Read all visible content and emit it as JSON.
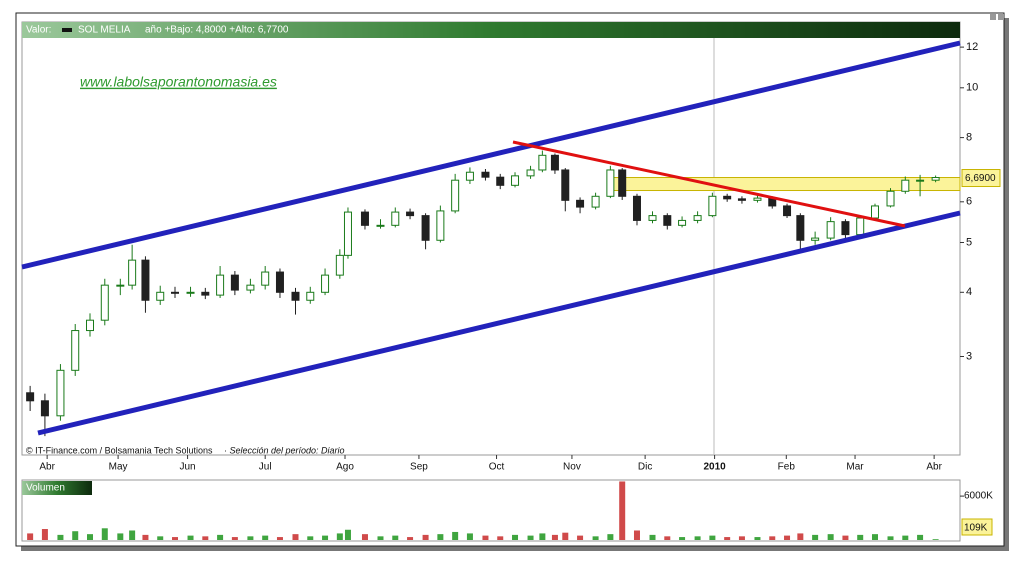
{
  "header": {
    "label": "Valor:",
    "name": "SOL MELIA",
    "range": "año +Bajo: 4,8000 +Alto: 6,7700"
  },
  "watermark": "www.labolsaporantonomasia.es",
  "credit": "© IT-Finance.com / Bolsamania Tech Solutions",
  "period": "· Selección del período: Diario",
  "chart_data": [
    {
      "type": "candlestick",
      "log_y": true,
      "up_color": "#1a7a1a",
      "down_color": "#202020",
      "x": [
        -0.23,
        -0.03,
        0.18,
        0.38,
        0.58,
        0.78,
        0.99,
        1.15,
        1.33,
        1.53,
        1.73,
        1.94,
        2.14,
        2.34,
        2.54,
        2.75,
        2.95,
        3.15,
        3.36,
        3.56,
        3.76,
        3.96,
        4.07,
        4.3,
        4.51,
        4.71,
        4.91,
        5.12,
        5.32,
        5.52,
        5.72,
        5.93,
        6.13,
        6.33,
        6.54,
        6.7,
        6.87,
        7.01,
        7.21,
        7.42,
        7.62,
        7.78,
        7.98,
        8.19,
        8.39,
        8.59,
        8.8,
        9.0,
        9.2,
        9.4,
        9.61,
        9.81,
        10.01,
        10.19,
        10.39,
        10.6,
        10.8,
        11.0,
        11.2,
        11.41,
        11.61,
        11.81,
        12.02
      ],
      "open": [
        2.55,
        2.46,
        2.3,
        2.82,
        3.37,
        3.53,
        4.13,
        4.13,
        4.62,
        3.86,
        4.0,
        3.99,
        4.0,
        3.95,
        4.32,
        4.04,
        4.13,
        4.38,
        4.0,
        3.86,
        4.0,
        4.32,
        4.72,
        5.73,
        5.4,
        5.4,
        5.73,
        5.64,
        5.05,
        5.76,
        6.61,
        6.85,
        6.7,
        6.46,
        6.74,
        6.92,
        7.39,
        6.92,
        6.04,
        5.86,
        6.15,
        6.92,
        6.15,
        5.52,
        5.64,
        5.4,
        5.52,
        5.64,
        6.15,
        6.08,
        6.04,
        6.1,
        5.89,
        5.64,
        5.05,
        5.1,
        5.49,
        5.18,
        5.58,
        5.89,
        6.29,
        6.61,
        6.61
      ],
      "high": [
        2.63,
        2.54,
        2.9,
        3.47,
        3.64,
        4.25,
        4.25,
        4.95,
        4.7,
        4.12,
        4.1,
        4.1,
        4.08,
        4.5,
        4.4,
        4.25,
        4.5,
        4.45,
        4.08,
        4.1,
        4.45,
        4.85,
        5.85,
        5.8,
        5.55,
        5.85,
        5.82,
        5.7,
        5.9,
        6.8,
        7.0,
        6.95,
        6.8,
        6.85,
        7.05,
        7.55,
        7.45,
        6.98,
        6.12,
        6.25,
        7.05,
        6.98,
        6.22,
        5.75,
        5.7,
        5.62,
        5.75,
        6.25,
        6.22,
        6.15,
        6.2,
        6.15,
        5.95,
        5.7,
        5.25,
        5.6,
        5.55,
        5.65,
        5.95,
        6.38,
        6.72,
        6.77,
        6.75
      ],
      "low": [
        2.35,
        2.1,
        2.25,
        2.75,
        3.28,
        3.45,
        3.95,
        4.05,
        3.65,
        3.78,
        3.9,
        3.92,
        3.88,
        3.9,
        3.95,
        3.98,
        4.05,
        3.9,
        3.62,
        3.8,
        3.95,
        4.25,
        4.65,
        5.3,
        5.32,
        5.35,
        5.55,
        4.85,
        5.0,
        5.7,
        6.5,
        6.6,
        6.35,
        6.4,
        6.65,
        6.85,
        6.8,
        5.75,
        5.7,
        5.8,
        6.1,
        6.05,
        5.4,
        5.45,
        5.3,
        5.35,
        5.45,
        5.6,
        6.0,
        5.95,
        5.98,
        5.82,
        5.58,
        4.8,
        4.95,
        5.05,
        5.1,
        5.12,
        5.52,
        5.85,
        6.22,
        6.15,
        6.55
      ],
      "close": [
        2.46,
        2.3,
        2.82,
        3.37,
        3.53,
        4.13,
        4.13,
        4.62,
        3.86,
        4.0,
        3.99,
        4.0,
        3.95,
        4.32,
        4.04,
        4.13,
        4.38,
        4.0,
        3.86,
        4.0,
        4.32,
        4.72,
        5.73,
        5.4,
        5.4,
        5.73,
        5.64,
        5.05,
        5.76,
        6.61,
        6.85,
        6.7,
        6.46,
        6.74,
        6.92,
        7.39,
        6.92,
        6.04,
        5.86,
        6.15,
        6.92,
        6.15,
        5.52,
        5.64,
        5.4,
        5.52,
        5.64,
        6.15,
        6.08,
        6.04,
        6.1,
        5.89,
        5.64,
        5.05,
        5.1,
        5.49,
        5.18,
        5.58,
        5.89,
        6.29,
        6.61,
        6.61,
        6.69
      ],
      "xlim": [
        -0.34,
        12.35
      ],
      "ylim": [
        2,
        12.5
      ],
      "xticks": [
        {
          "value": 0,
          "label": "Abr"
        },
        {
          "value": 0.96,
          "label": "May"
        },
        {
          "value": 1.9,
          "label": "Jun"
        },
        {
          "value": 2.95,
          "label": "Jul"
        },
        {
          "value": 4.03,
          "label": "Ago"
        },
        {
          "value": 5.03,
          "label": "Sep"
        },
        {
          "value": 6.08,
          "label": "Oct"
        },
        {
          "value": 7.1,
          "label": "Nov"
        },
        {
          "value": 8.09,
          "label": "Dic"
        },
        {
          "value": 9.03,
          "label": "2010"
        },
        {
          "value": 10.0,
          "label": "Feb"
        },
        {
          "value": 10.93,
          "label": "Mar"
        },
        {
          "value": 12.0,
          "label": "Abr"
        }
      ],
      "yticks": [
        3,
        4,
        5,
        6,
        8,
        10,
        12
      ],
      "current_price": {
        "value": 6.69,
        "label": "6,6900"
      }
    },
    {
      "type": "bar",
      "title": "Volumen",
      "up_color": "#3fa53f",
      "down_color": "#d04a4a",
      "x": [
        -0.23,
        -0.03,
        0.18,
        0.38,
        0.58,
        0.78,
        0.99,
        1.15,
        1.33,
        1.53,
        1.73,
        1.94,
        2.14,
        2.34,
        2.54,
        2.75,
        2.95,
        3.15,
        3.36,
        3.56,
        3.76,
        3.96,
        4.07,
        4.3,
        4.51,
        4.71,
        4.91,
        5.12,
        5.32,
        5.52,
        5.72,
        5.93,
        6.13,
        6.33,
        6.54,
        6.7,
        6.87,
        7.01,
        7.21,
        7.42,
        7.62,
        7.78,
        7.98,
        8.19,
        8.39,
        8.59,
        8.8,
        9.0,
        9.2,
        9.4,
        9.61,
        9.81,
        10.01,
        10.19,
        10.39,
        10.6,
        10.8,
        11.0,
        11.2,
        11.41,
        11.61,
        11.81,
        12.02
      ],
      "values": [
        900000,
        1500000,
        700000,
        1200000,
        800000,
        1600000,
        900000,
        1300000,
        700000,
        500000,
        400000,
        600000,
        500000,
        700000,
        400000,
        500000,
        600000,
        400000,
        800000,
        500000,
        600000,
        900000,
        1400000,
        800000,
        500000,
        600000,
        400000,
        700000,
        800000,
        1100000,
        900000,
        600000,
        500000,
        700000,
        600000,
        900000,
        700000,
        1000000,
        600000,
        500000,
        800000,
        8000000,
        1300000,
        700000,
        500000,
        400000,
        500000,
        600000,
        400000,
        500000,
        400000,
        500000,
        600000,
        900000,
        700000,
        800000,
        600000,
        700000,
        800000,
        500000,
        600000,
        700000,
        109000
      ],
      "xlim": [
        -0.34,
        12.35
      ],
      "ylim": [
        0,
        8200000
      ],
      "yticks": [
        {
          "value": 6000000,
          "label": "6000K"
        }
      ],
      "last_label": "109K"
    }
  ]
}
